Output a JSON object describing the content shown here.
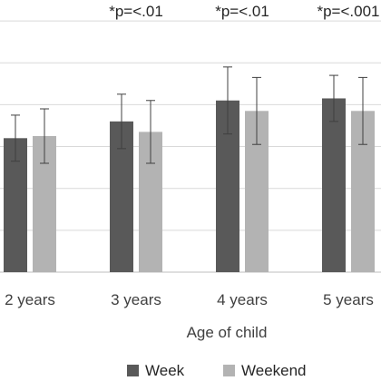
{
  "chart_data": {
    "type": "bar",
    "title": "",
    "xlabel": "Age of child",
    "ylabel": "",
    "categories": [
      "2 years",
      "3 years",
      "4 years",
      "5 years"
    ],
    "series": [
      {
        "name": "Week",
        "color": "#595959",
        "values": [
          3.2,
          3.6,
          4.1,
          4.15
        ],
        "err_plus": [
          0.55,
          0.65,
          0.8,
          0.55
        ],
        "err_minus": [
          0.55,
          0.65,
          0.8,
          0.55
        ]
      },
      {
        "name": "Weekend",
        "color": "#b3b3b3",
        "values": [
          3.25,
          3.35,
          3.85,
          3.85
        ],
        "err_plus": [
          0.65,
          0.75,
          0.8,
          0.8
        ],
        "err_minus": [
          0.65,
          0.75,
          0.8,
          0.8
        ]
      }
    ],
    "annotations": [
      "",
      "*p=<.01",
      "*p=<.01",
      "*p=<.001"
    ],
    "ylim": [
      0,
      6.5
    ],
    "grid": true,
    "legend_position": "bottom"
  }
}
